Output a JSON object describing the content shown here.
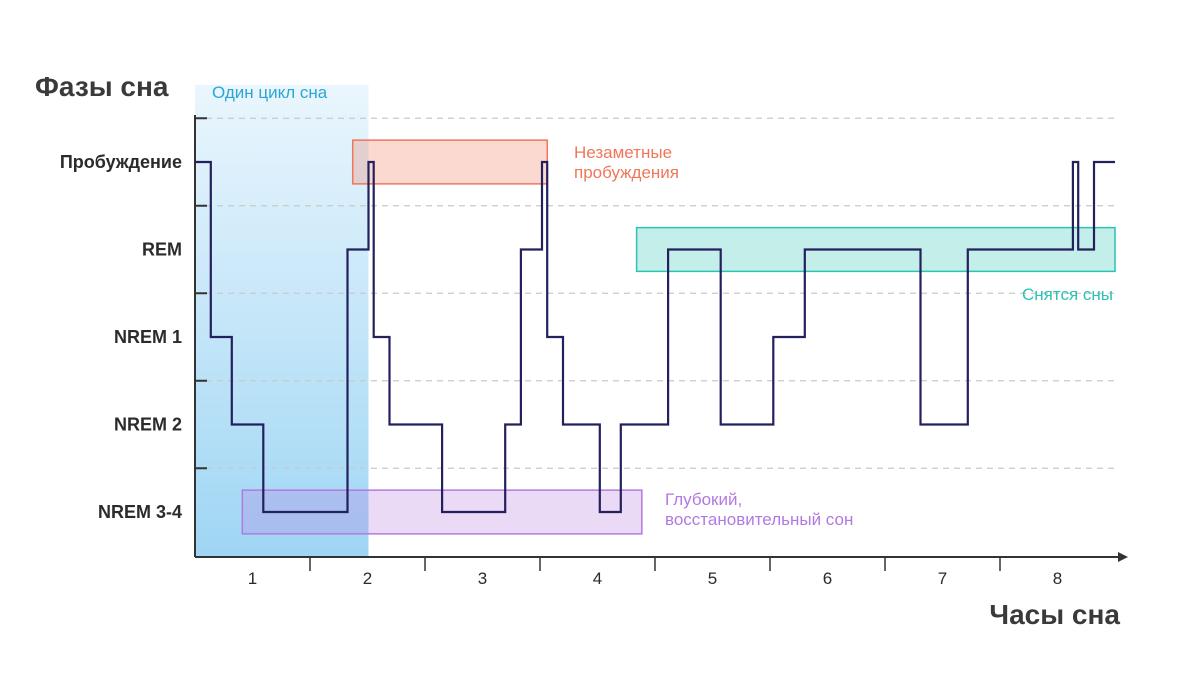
{
  "chart_data": {
    "type": "line",
    "title": "",
    "ylabel": "Фазы сна",
    "xlabel": "Часы сна",
    "y_levels": [
      "Пробуждение",
      "REM",
      "NREM 1",
      "NREM 2",
      "NREM 3-4"
    ],
    "x_ticks": [
      "1",
      "2",
      "3",
      "4",
      "5",
      "6",
      "7",
      "8"
    ],
    "xlim": [
      0,
      8.75
    ],
    "grid": "horizontal dashed",
    "series": [
      {
        "line_color": "#23205e",
        "points": [
          [
            0,
            0
          ],
          [
            0.15,
            0
          ],
          [
            0.15,
            2
          ],
          [
            0.35,
            2
          ],
          [
            0.35,
            3
          ],
          [
            0.65,
            3
          ],
          [
            0.65,
            4
          ],
          [
            1.45,
            4
          ],
          [
            1.45,
            1
          ],
          [
            1.65,
            1
          ],
          [
            1.65,
            0
          ],
          [
            1.7,
            0
          ],
          [
            1.7,
            2
          ],
          [
            1.85,
            2
          ],
          [
            1.85,
            3
          ],
          [
            2.35,
            3
          ],
          [
            2.35,
            4
          ],
          [
            2.95,
            4
          ],
          [
            2.95,
            3
          ],
          [
            3.1,
            3
          ],
          [
            3.1,
            1
          ],
          [
            3.3,
            1
          ],
          [
            3.3,
            0
          ],
          [
            3.35,
            0
          ],
          [
            3.35,
            2
          ],
          [
            3.5,
            2
          ],
          [
            3.5,
            3
          ],
          [
            3.85,
            3
          ],
          [
            3.85,
            4
          ],
          [
            4.05,
            4
          ],
          [
            4.05,
            3
          ],
          [
            4.5,
            3
          ],
          [
            4.5,
            1
          ],
          [
            5.0,
            1
          ],
          [
            5.0,
            3
          ],
          [
            5.5,
            3
          ],
          [
            5.5,
            2
          ],
          [
            5.8,
            2
          ],
          [
            5.8,
            1
          ],
          [
            6.9,
            1
          ],
          [
            6.9,
            3
          ],
          [
            7.35,
            3
          ],
          [
            7.35,
            1
          ],
          [
            8.35,
            1
          ],
          [
            8.35,
            0
          ],
          [
            8.4,
            0
          ],
          [
            8.4,
            1
          ],
          [
            8.55,
            1
          ],
          [
            8.55,
            0
          ],
          [
            8.75,
            0
          ]
        ]
      }
    ],
    "annotations": [
      {
        "text": "Один цикл сна",
        "color": "#2aa6d6",
        "x_range": [
          0,
          1.65
        ],
        "y_range": [
          -0.5,
          4.5
        ]
      },
      {
        "text": "Незаметные\nпробуждения",
        "color": "#f0765a",
        "x_range": [
          1.5,
          3.35
        ],
        "y_range": [
          -0.25,
          0.25
        ]
      },
      {
        "text": "Снятся сны",
        "color": "#2cc2b4",
        "x_range": [
          4.2,
          8.75
        ],
        "y_range": [
          0.75,
          1.25
        ]
      },
      {
        "text": "Глубокий,\nвосстановительный сон",
        "color": "#b27ae0",
        "x_range": [
          0.45,
          4.25
        ],
        "y_range": [
          3.75,
          4.25
        ]
      }
    ]
  }
}
